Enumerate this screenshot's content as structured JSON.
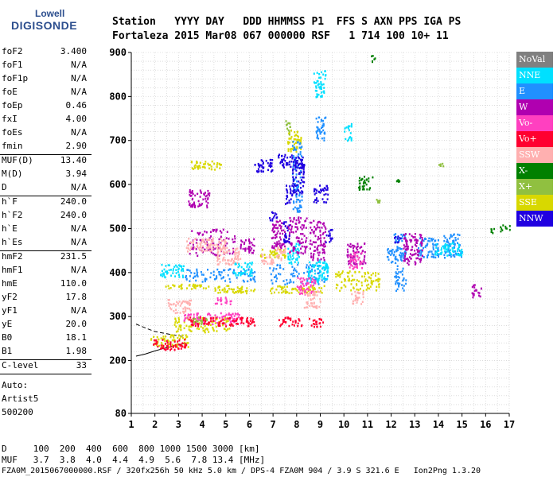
{
  "logo": {
    "line1": "Lowell",
    "line2": "DIGISONDE"
  },
  "header": {
    "line1": "Station   YYYY DAY   DDD HHMMSS P1  FFS S AXN PPS IGA PS",
    "line2": "Fortaleza 2015 Mar08 067 000000 RSF   1 714 100 10+ 11"
  },
  "params": [
    {
      "name": "foF2",
      "value": "3.400"
    },
    {
      "name": "foF1",
      "value": "N/A"
    },
    {
      "name": "foF1p",
      "value": "N/A"
    },
    {
      "name": "foE",
      "value": "N/A"
    },
    {
      "name": "foEp",
      "value": "0.46"
    },
    {
      "name": "fxI",
      "value": "4.00"
    },
    {
      "name": "foEs",
      "value": "N/A"
    },
    {
      "name": "fmin",
      "value": "2.90",
      "sep": true
    },
    {
      "name": "MUF(D)",
      "value": "13.40"
    },
    {
      "name": "M(D)",
      "value": "3.94"
    },
    {
      "name": "D",
      "value": "N/A",
      "sep": true
    },
    {
      "name": "h`F",
      "value": "240.0"
    },
    {
      "name": "h`F2",
      "value": "240.0"
    },
    {
      "name": "h`E",
      "value": "N/A"
    },
    {
      "name": "h`Es",
      "value": "N/A",
      "sep": true
    },
    {
      "name": "hmF2",
      "value": "231.5"
    },
    {
      "name": "hmF1",
      "value": "N/A"
    },
    {
      "name": "hmE",
      "value": "110.0"
    },
    {
      "name": "yF2",
      "value": "17.8"
    },
    {
      "name": "yF1",
      "value": "N/A"
    },
    {
      "name": "yE",
      "value": "20.0"
    },
    {
      "name": "B0",
      "value": "18.1"
    },
    {
      "name": "B1",
      "value": "1.98",
      "sep": true
    },
    {
      "name": "C-level",
      "value": "33",
      "sep": true
    }
  ],
  "autoscale": {
    "l1": "Auto:",
    "l2": "Artist5",
    "l3": "500200"
  },
  "footer": {
    "d_row": "D     100  200  400  600  800 1000 1500 3000 [km]",
    "muf_row": "MUF   3.7  3.8  4.0  4.4  4.9  5.6  7.8 13.4 [MHz]",
    "file_row": "FZA0M_2015067000000.RSF / 320fx256h 50 kHz 5.0 km / DPS-4 FZA0M 904 / 3.9 S 321.6 E   Ion2Png 1.3.20"
  },
  "legend": [
    {
      "label": "NoVal",
      "color": "#808080"
    },
    {
      "label": "NNE",
      "color": "#00e0ff"
    },
    {
      "label": "E",
      "color": "#2090ff"
    },
    {
      "label": "W",
      "color": "#b000b0"
    },
    {
      "label": "Vo-",
      "color": "#ff40c0"
    },
    {
      "label": "Vo+",
      "color": "#ff0030"
    },
    {
      "label": "SSW",
      "color": "#ffb0b0"
    },
    {
      "label": "X-",
      "color": "#008000"
    },
    {
      "label": "X+",
      "color": "#90c040"
    },
    {
      "label": "SSE",
      "color": "#d8d800"
    },
    {
      "label": "NNW",
      "color": "#2000e0"
    }
  ],
  "chart_data": {
    "type": "scatter",
    "title": "",
    "xlabel": "",
    "ylabel": "",
    "xlim": [
      1,
      17
    ],
    "ylim": [
      80,
      900
    ],
    "x_ticks": [
      "1",
      "2",
      "3",
      "4",
      "5",
      "6",
      "7",
      "8",
      "9",
      "10",
      "11",
      "12",
      "13",
      "14",
      "15",
      "16",
      "17"
    ],
    "y_ticks": [
      {
        "label": "900",
        "v": 900
      },
      {
        "label": "800",
        "v": 800
      },
      {
        "label": "700",
        "v": 700
      },
      {
        "label": "600",
        "v": 600
      },
      {
        "label": "500",
        "v": 500
      },
      {
        "label": "400",
        "v": 400
      },
      {
        "label": "300",
        "v": 300
      },
      {
        "label": "200",
        "v": 200
      },
      {
        "label": "80",
        "v": 80
      }
    ],
    "grid": true,
    "legend_position": "right",
    "traces": [
      {
        "points": [
          [
            1.2,
            210
          ],
          [
            1.6,
            215
          ],
          [
            2,
            222
          ],
          [
            2.4,
            228
          ],
          [
            2.8,
            234
          ],
          [
            3.2,
            238
          ],
          [
            3.4,
            240
          ]
        ]
      },
      {
        "points": [
          [
            1.2,
            283
          ],
          [
            1.6,
            274
          ],
          [
            2,
            266
          ],
          [
            2.4,
            262
          ],
          [
            2.8,
            258
          ],
          [
            3.2,
            255
          ]
        ]
      }
    ],
    "series": [
      {
        "name": "SSE",
        "color": "#d8d800",
        "clusters": [
          [
            2.2,
            365,
            4.3,
            375
          ],
          [
            4.5,
            355,
            6.2,
            372
          ],
          [
            6.8,
            355,
            9.2,
            372
          ],
          [
            9.6,
            360,
            11.5,
            405
          ],
          [
            1.8,
            232,
            3.4,
            260
          ],
          [
            2.8,
            265,
            5.2,
            300
          ],
          [
            3.5,
            635,
            4.8,
            655
          ],
          [
            6.4,
            435,
            7.5,
            455
          ],
          [
            7.6,
            675,
            8.2,
            725
          ]
        ]
      },
      {
        "name": "E",
        "color": "#2090ff",
        "clusters": [
          [
            3.2,
            380,
            6.3,
            410
          ],
          [
            6.8,
            375,
            9.3,
            420
          ],
          [
            12.1,
            360,
            12.6,
            490
          ],
          [
            13.1,
            435,
            14,
            480
          ],
          [
            14.2,
            435,
            15,
            490
          ],
          [
            11.8,
            425,
            12.2,
            460
          ],
          [
            8.8,
            700,
            9.2,
            760
          ],
          [
            7.8,
            540,
            8.2,
            700
          ]
        ]
      },
      {
        "name": "NNE",
        "color": "#00e0ff",
        "clusters": [
          [
            2.2,
            390,
            3.2,
            420
          ],
          [
            5.3,
            395,
            6.1,
            425
          ],
          [
            8.4,
            380,
            9.3,
            430
          ],
          [
            13.8,
            440,
            15,
            470
          ],
          [
            7.6,
            420,
            8.1,
            470
          ],
          [
            10,
            700,
            10.3,
            740
          ],
          [
            8.7,
            800,
            9.2,
            860
          ]
        ]
      },
      {
        "name": "W",
        "color": "#b000b0",
        "clusters": [
          [
            3.4,
            440,
            5.4,
            500
          ],
          [
            3.4,
            550,
            4.3,
            590
          ],
          [
            6.9,
            455,
            7.5,
            520
          ],
          [
            7.6,
            445,
            8.4,
            530
          ],
          [
            8.5,
            430,
            9.2,
            520
          ],
          [
            10.1,
            420,
            10.9,
            470
          ],
          [
            12.5,
            420,
            13.3,
            490
          ],
          [
            5.6,
            445,
            6.2,
            480
          ],
          [
            15.4,
            345,
            15.8,
            375
          ]
        ]
      },
      {
        "name": "Vo-",
        "color": "#ff40c0",
        "clusters": [
          [
            3.2,
            285,
            5.6,
            310
          ],
          [
            4.5,
            330,
            5.2,
            345
          ],
          [
            8,
            350,
            8.8,
            390
          ],
          [
            10.2,
            410,
            10.8,
            450
          ]
        ]
      },
      {
        "name": "Vo+",
        "color": "#ff0030",
        "clusters": [
          [
            1.9,
            225,
            3.3,
            250
          ],
          [
            3.4,
            280,
            6.3,
            300
          ],
          [
            7.2,
            280,
            8.2,
            300
          ],
          [
            8.5,
            278,
            9.1,
            298
          ]
        ]
      },
      {
        "name": "SSW",
        "color": "#ffb0b0",
        "clusters": [
          [
            3.3,
            450,
            5,
            480
          ],
          [
            4.6,
            420,
            5.6,
            460
          ],
          [
            8.3,
            320,
            9,
            360
          ],
          [
            6.5,
            420,
            7,
            445
          ],
          [
            7.1,
            430,
            7.5,
            460
          ],
          [
            2.5,
            310,
            3.5,
            340
          ],
          [
            10.3,
            330,
            10.8,
            360
          ]
        ]
      },
      {
        "name": "X-",
        "color": "#008000",
        "clusters": [
          [
            10.6,
            590,
            11.2,
            620
          ],
          [
            16.6,
            495,
            17,
            510
          ],
          [
            16.2,
            490,
            16.4,
            502
          ],
          [
            11.1,
            880,
            11.3,
            895
          ],
          [
            12.2,
            608,
            12.4,
            615
          ]
        ]
      },
      {
        "name": "X+",
        "color": "#90c040",
        "clusters": [
          [
            7.5,
            715,
            7.7,
            750
          ],
          [
            3.6,
            285,
            4.2,
            300
          ],
          [
            11.3,
            560,
            11.5,
            570
          ],
          [
            14,
            640,
            14.2,
            650
          ]
        ]
      },
      {
        "name": "NNW",
        "color": "#2000e0",
        "clusters": [
          [
            6.2,
            630,
            7,
            660
          ],
          [
            7.1,
            640,
            8.3,
            670
          ],
          [
            7.8,
            580,
            8.3,
            650
          ],
          [
            8.7,
            560,
            9.3,
            600
          ],
          [
            7.5,
            555,
            7.8,
            600
          ],
          [
            7.4,
            470,
            7.7,
            520
          ],
          [
            9.2,
            470,
            9.5,
            500
          ],
          [
            6.8,
            520,
            7.2,
            540
          ],
          [
            12.1,
            470,
            12.4,
            490
          ]
        ]
      }
    ]
  }
}
